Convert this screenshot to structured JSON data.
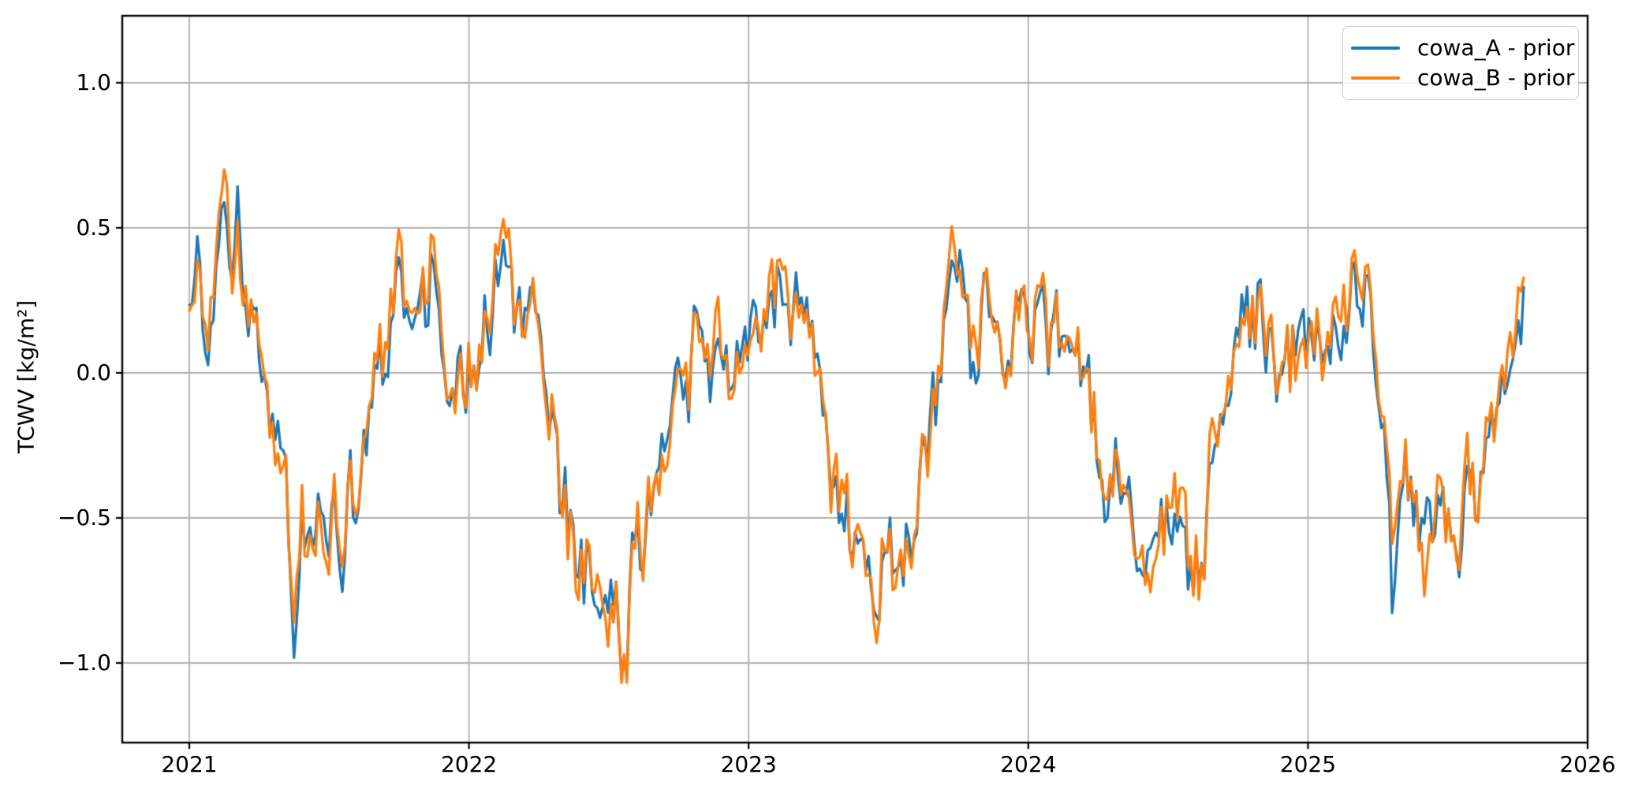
{
  "chart_data": {
    "type": "line",
    "title": "",
    "xlabel": "",
    "ylabel": "TCWV [kg/m²]",
    "grid": true,
    "grid_color": "#b0b0b0",
    "spine_color": "#000000",
    "background": "#ffffff",
    "xlim": [
      2020.7603,
      2026.0
    ],
    "ylim": [
      -1.2745,
      1.231
    ],
    "x_ticks": [
      2021,
      2022,
      2023,
      2024,
      2025,
      2026
    ],
    "x_tick_labels": [
      "2021",
      "2022",
      "2023",
      "2024",
      "2025",
      "2026"
    ],
    "y_ticks": [
      1.0,
      0.5,
      0.0,
      -0.5,
      -1.0
    ],
    "y_tick_labels": [
      "1.0",
      "0.5",
      "0.0",
      "−0.5",
      "−1.0"
    ],
    "legend": {
      "position": "upper right",
      "labels": [
        "cowa_A - prior",
        "cowa_B - prior"
      ]
    },
    "x_start": 2021.0,
    "x_end": 2025.775,
    "noise": {
      "seed": 20210,
      "step_years": 0.0096,
      "ar": 0.45,
      "common_amp": 0.14,
      "indep_amp": 0.055
    },
    "keypoints_t": [
      2021.0,
      2021.03,
      2021.06,
      2021.09,
      2021.115,
      2021.135,
      2021.155,
      2021.175,
      2021.2,
      2021.23,
      2021.26,
      2021.29,
      2021.32,
      2021.35,
      2021.375,
      2021.4,
      2021.43,
      2021.46,
      2021.49,
      2021.52,
      2021.55,
      2021.58,
      2021.61,
      2021.64,
      2021.67,
      2021.7,
      2021.73,
      2021.76,
      2021.79,
      2021.82,
      2021.85,
      2021.88,
      2021.91,
      2021.94,
      2021.97,
      2022.0,
      2022.03,
      2022.06,
      2022.09,
      2022.12,
      2022.14,
      2022.17,
      2022.2,
      2022.23,
      2022.26,
      2022.29,
      2022.32,
      2022.35,
      2022.38,
      2022.41,
      2022.44,
      2022.47,
      2022.5,
      2022.53,
      2022.56,
      2022.59,
      2022.62,
      2022.65,
      2022.68,
      2022.71,
      2022.74,
      2022.77,
      2022.8,
      2022.83,
      2022.86,
      2022.89,
      2022.92,
      2022.95,
      2022.98,
      2023.01,
      2023.04,
      2023.07,
      2023.1,
      2023.13,
      2023.16,
      2023.19,
      2023.22,
      2023.25,
      2023.28,
      2023.31,
      2023.34,
      2023.37,
      2023.4,
      2023.43,
      2023.46,
      2023.49,
      2023.52,
      2023.55,
      2023.58,
      2023.61,
      2023.64,
      2023.67,
      2023.7,
      2023.73,
      2023.76,
      2023.79,
      2023.82,
      2023.85,
      2023.88,
      2023.91,
      2023.94,
      2023.97,
      2024.0,
      2024.03,
      2024.06,
      2024.09,
      2024.12,
      2024.15,
      2024.18,
      2024.21,
      2024.24,
      2024.27,
      2024.3,
      2024.33,
      2024.36,
      2024.39,
      2024.42,
      2024.45,
      2024.48,
      2024.51,
      2024.54,
      2024.57,
      2024.6,
      2024.625,
      2024.65,
      2024.68,
      2024.71,
      2024.74,
      2024.77,
      2024.8,
      2024.83,
      2024.86,
      2024.89,
      2024.92,
      2024.95,
      2024.98,
      2025.01,
      2025.04,
      2025.07,
      2025.1,
      2025.13,
      2025.16,
      2025.19,
      2025.21,
      2025.24,
      2025.27,
      2025.3,
      2025.33,
      2025.36,
      2025.39,
      2025.42,
      2025.45,
      2025.48,
      2025.51,
      2025.54,
      2025.57,
      2025.6,
      2025.63,
      2025.66,
      2025.69,
      2025.72,
      2025.745,
      2025.76,
      2025.775
    ],
    "series": [
      {
        "name": "cowa_A - prior",
        "color": "#1f77b4",
        "keypoints_y": [
          0.17,
          0.25,
          0.18,
          0.32,
          0.45,
          0.5,
          0.45,
          0.58,
          0.35,
          0.3,
          0.1,
          -0.12,
          -0.35,
          -0.55,
          -0.93,
          -0.45,
          -0.6,
          -0.48,
          -0.7,
          -0.48,
          -0.55,
          -0.42,
          -0.45,
          -0.25,
          -0.08,
          0.05,
          0.2,
          0.3,
          0.18,
          0.3,
          0.2,
          0.38,
          0.1,
          0.02,
          0.1,
          0.1,
          0.05,
          0.15,
          0.25,
          0.35,
          0.38,
          0.3,
          0.32,
          0.15,
          0.0,
          -0.15,
          -0.35,
          -0.52,
          -0.55,
          -0.68,
          -0.8,
          -1.0,
          -0.85,
          -0.75,
          -0.88,
          -0.6,
          -0.65,
          -0.5,
          -0.42,
          -0.28,
          -0.15,
          -0.05,
          0.08,
          0.18,
          0.02,
          0.15,
          0.08,
          0.12,
          0.1,
          0.18,
          0.08,
          0.2,
          0.28,
          0.32,
          0.18,
          0.08,
          0.0,
          -0.1,
          -0.25,
          -0.42,
          -0.55,
          -0.62,
          -0.48,
          -0.6,
          -0.7,
          -0.55,
          -0.6,
          -0.68,
          -0.5,
          -0.38,
          -0.22,
          -0.08,
          0.1,
          0.32,
          0.2,
          0.05,
          0.15,
          0.28,
          0.1,
          0.02,
          0.12,
          0.08,
          0.15,
          0.22,
          0.1,
          0.18,
          0.08,
          0.02,
          -0.05,
          -0.15,
          -0.28,
          -0.38,
          -0.45,
          -0.4,
          -0.48,
          -0.52,
          -0.58,
          -0.65,
          -0.55,
          -0.5,
          -0.58,
          -0.68,
          -0.6,
          -0.68,
          -0.35,
          -0.15,
          -0.02,
          0.12,
          0.25,
          0.1,
          0.2,
          0.12,
          0.05,
          0.1,
          0.08,
          0.12,
          0.08,
          0.15,
          0.05,
          0.15,
          0.22,
          0.3,
          0.35,
          0.38,
          0.15,
          -0.1,
          -0.75,
          -0.35,
          -0.45,
          -0.52,
          -0.48,
          -0.4,
          -0.48,
          -0.42,
          -0.5,
          -0.45,
          -0.35,
          -0.28,
          -0.18,
          -0.08,
          0.05,
          0.12,
          0.18,
          0.17
        ]
      },
      {
        "name": "cowa_B - prior",
        "color": "#ff7f0e",
        "keypoints_y": [
          0.2,
          0.22,
          0.25,
          0.35,
          0.55,
          0.65,
          0.42,
          0.45,
          0.38,
          0.28,
          0.12,
          -0.1,
          -0.32,
          -0.5,
          -0.75,
          -0.42,
          -0.7,
          -0.45,
          -0.78,
          -0.5,
          -0.52,
          -0.4,
          -0.48,
          -0.22,
          -0.05,
          0.08,
          0.22,
          0.35,
          0.2,
          0.32,
          0.18,
          0.4,
          0.12,
          0.05,
          0.08,
          0.12,
          0.08,
          0.12,
          0.28,
          0.42,
          0.48,
          0.35,
          0.3,
          0.18,
          0.02,
          -0.12,
          -0.3,
          -0.5,
          -0.58,
          -0.65,
          -0.75,
          -0.92,
          -1.02,
          -0.8,
          -0.9,
          -0.62,
          -0.6,
          -0.48,
          -0.45,
          -0.25,
          -0.18,
          -0.02,
          0.1,
          0.15,
          0.05,
          0.18,
          0.05,
          0.1,
          0.12,
          0.15,
          0.1,
          0.22,
          0.3,
          0.35,
          0.15,
          0.1,
          -0.02,
          -0.08,
          -0.28,
          -0.4,
          -0.52,
          -0.65,
          -0.5,
          -0.65,
          -0.75,
          -0.52,
          -0.62,
          -0.65,
          -0.48,
          -0.35,
          -0.25,
          -0.05,
          0.12,
          0.38,
          0.18,
          0.08,
          0.12,
          0.3,
          0.08,
          0.05,
          0.1,
          0.1,
          0.12,
          0.25,
          0.12,
          0.15,
          0.1,
          0.05,
          -0.02,
          -0.18,
          -0.25,
          -0.35,
          -0.42,
          -0.38,
          -0.5,
          -0.55,
          -0.6,
          -0.78,
          -0.52,
          -0.48,
          -0.55,
          -0.65,
          -0.65,
          -0.72,
          -0.32,
          -0.12,
          0.0,
          0.15,
          0.28,
          0.12,
          0.22,
          0.1,
          0.08,
          0.12,
          0.05,
          0.1,
          0.1,
          0.12,
          0.08,
          0.18,
          0.25,
          0.32,
          0.45,
          0.48,
          0.18,
          -0.08,
          -0.45,
          -0.38,
          -0.42,
          -0.55,
          -0.75,
          -0.38,
          -0.45,
          -0.45,
          -0.52,
          -0.42,
          -0.38,
          -0.25,
          -0.2,
          -0.05,
          0.08,
          0.18,
          0.3,
          0.22
        ]
      }
    ]
  }
}
